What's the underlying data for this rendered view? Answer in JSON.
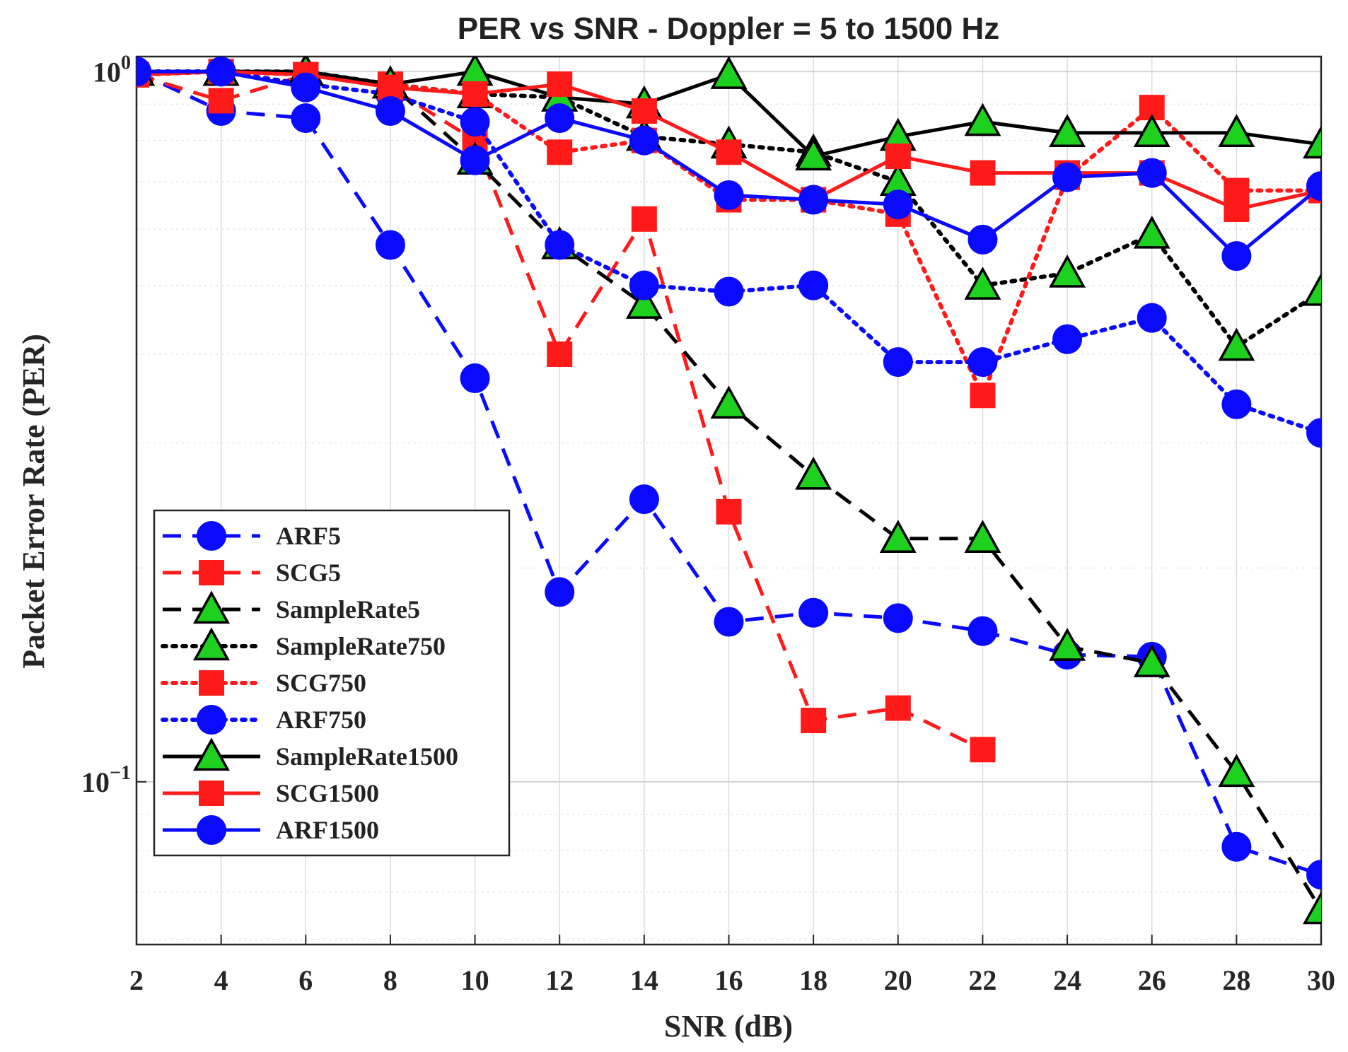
{
  "chart_data": {
    "type": "line",
    "title": "PER vs SNR - Doppler = 5 to 1500 Hz",
    "xlabel": "SNR (dB)",
    "ylabel": "Packet Error Rate (PER)",
    "x": [
      2,
      4,
      6,
      8,
      10,
      12,
      14,
      16,
      18,
      20,
      22,
      24,
      26,
      28,
      30
    ],
    "xticks": [
      "2",
      "4",
      "6",
      "8",
      "10",
      "12",
      "14",
      "16",
      "18",
      "20",
      "22",
      "24",
      "26",
      "28",
      "30"
    ],
    "xlim": [
      2,
      30
    ],
    "yscale": "log",
    "ylim": [
      0.059,
      1.05
    ],
    "yticks": [
      {
        "base": "10",
        "exp": "0",
        "value": 1
      },
      {
        "base": "10",
        "exp": "−1",
        "value": 0.1
      }
    ],
    "grid": true,
    "legend_position": "lower-left",
    "series": [
      {
        "name": "ARF5",
        "color": "#0a0aff",
        "line": "dashed",
        "marker": "circle",
        "values": [
          1.0,
          0.88,
          0.86,
          0.57,
          0.37,
          0.185,
          0.25,
          0.168,
          0.173,
          0.17,
          0.163,
          0.151,
          0.15,
          0.081,
          0.074
        ]
      },
      {
        "name": "SCG5",
        "color": "#ff1a1a",
        "line": "dashed",
        "marker": "square",
        "values": [
          0.99,
          0.91,
          0.99,
          0.95,
          0.8,
          0.4,
          0.62,
          0.24,
          0.122,
          0.127,
          0.111,
          null,
          null,
          null,
          null
        ]
      },
      {
        "name": "SampleRate5",
        "color": "#000000",
        "line": "dashed",
        "marker": "triangle",
        "values": [
          1.0,
          1.0,
          1.0,
          0.96,
          0.75,
          0.57,
          0.47,
          0.34,
          0.27,
          0.22,
          0.22,
          0.155,
          0.147,
          0.103,
          0.066
        ]
      },
      {
        "name": "SampleRate750",
        "color": "#000000",
        "line": "dotted",
        "marker": "triangle",
        "values": [
          1.0,
          1.0,
          1.0,
          0.96,
          0.93,
          0.92,
          0.81,
          0.79,
          0.77,
          0.7,
          0.5,
          0.52,
          0.59,
          0.41,
          0.49
        ]
      },
      {
        "name": "SCG750",
        "color": "#ff1a1a",
        "line": "dotted",
        "marker": "square",
        "values": [
          0.99,
          1.0,
          0.99,
          0.96,
          0.93,
          0.77,
          0.8,
          0.66,
          0.66,
          0.63,
          0.35,
          0.71,
          0.89,
          0.68,
          0.68
        ]
      },
      {
        "name": "ARF750",
        "color": "#0a0aff",
        "line": "dotted",
        "marker": "circle",
        "values": [
          1.0,
          1.0,
          0.96,
          0.93,
          0.85,
          0.57,
          0.5,
          0.49,
          0.5,
          0.39,
          0.39,
          0.42,
          0.45,
          0.34,
          0.31
        ]
      },
      {
        "name": "SampleRate1500",
        "color": "#000000",
        "line": "solid",
        "marker": "triangle",
        "values": [
          1.0,
          1.0,
          1.0,
          0.96,
          1.0,
          0.92,
          0.9,
          0.99,
          0.76,
          0.81,
          0.85,
          0.82,
          0.82,
          0.82,
          0.79
        ]
      },
      {
        "name": "SCG1500",
        "color": "#ff1a1a",
        "line": "solid",
        "marker": "square",
        "values": [
          0.99,
          1.0,
          0.99,
          0.95,
          0.93,
          0.96,
          0.88,
          0.77,
          0.66,
          0.76,
          0.72,
          0.72,
          0.72,
          0.64,
          0.68
        ]
      },
      {
        "name": "ARF1500",
        "color": "#0a0aff",
        "line": "solid",
        "marker": "circle",
        "values": [
          1.0,
          1.0,
          0.95,
          0.88,
          0.75,
          0.86,
          0.8,
          0.67,
          0.66,
          0.65,
          0.58,
          0.71,
          0.72,
          0.55,
          0.69
        ]
      }
    ]
  }
}
